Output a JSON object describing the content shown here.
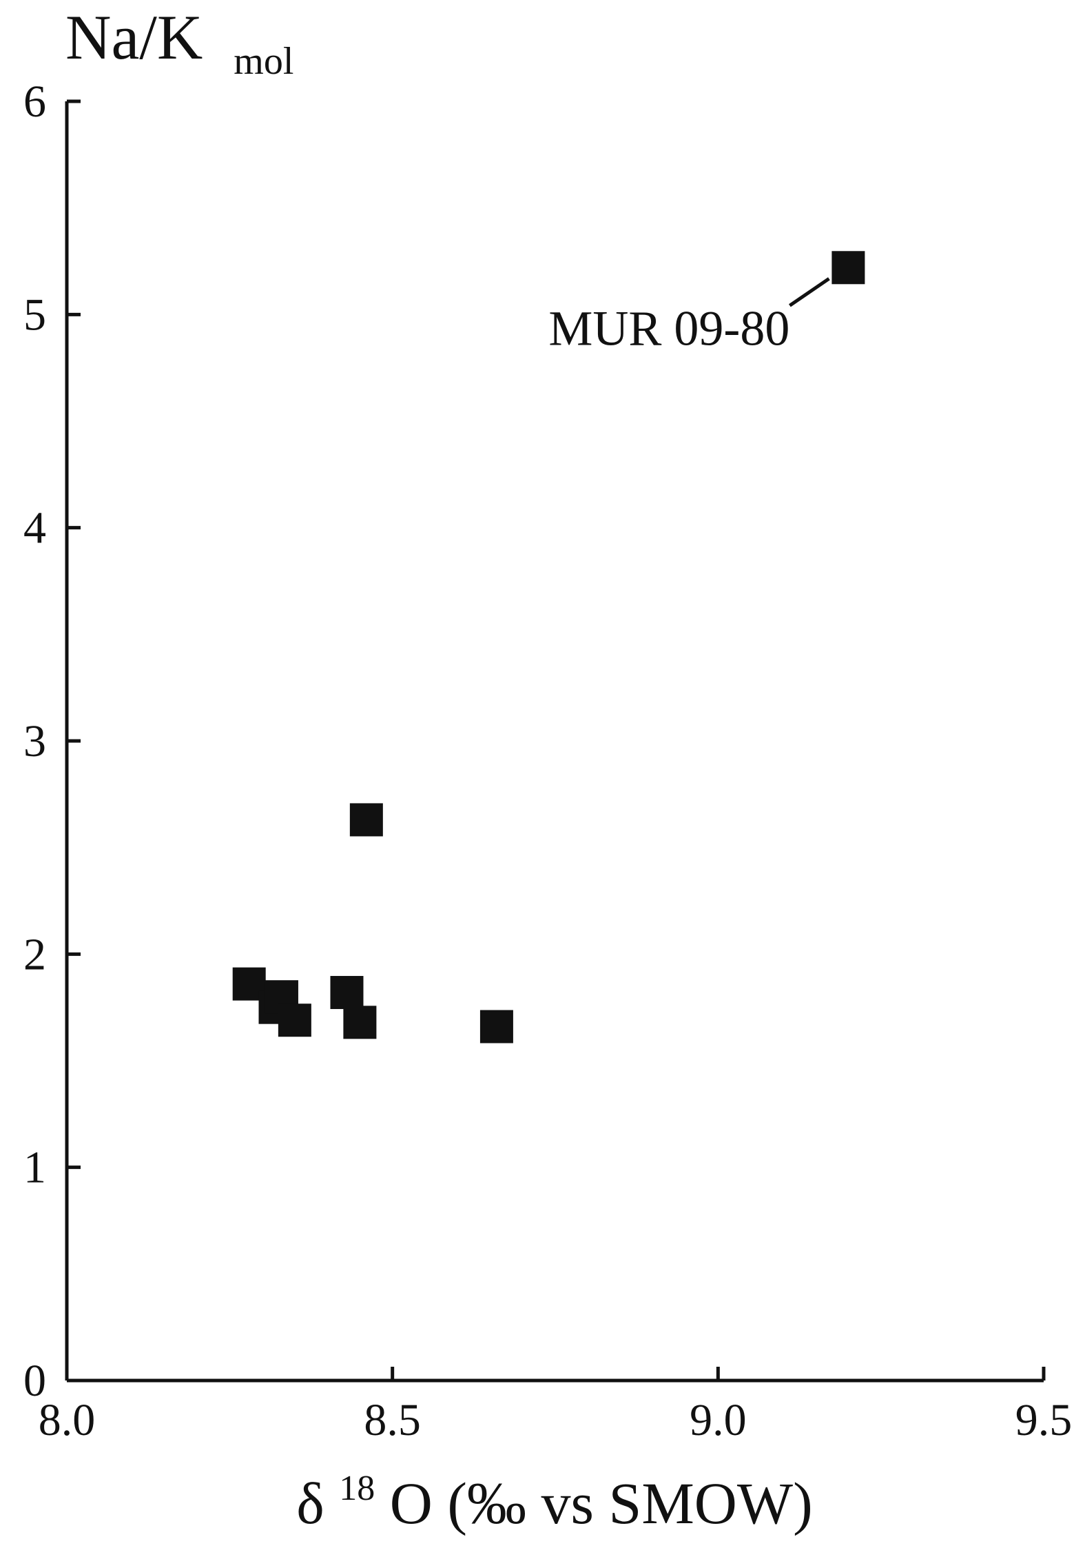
{
  "chart_data": {
    "type": "scatter",
    "ylabel_main": "Na/K",
    "ylabel_sub": "mol",
    "xlabel_delta": "δ",
    "xlabel_sup": "18",
    "xlabel_rest": "O (‰ vs SMOW)",
    "xlim": [
      8.0,
      9.5
    ],
    "ylim": [
      0,
      6
    ],
    "x_ticks": [
      8.0,
      8.5,
      9.0,
      9.5
    ],
    "x_tick_labels": [
      "8.0",
      "8.5",
      "9.0",
      "9.5"
    ],
    "y_ticks": [
      0,
      1,
      2,
      3,
      4,
      5,
      6
    ],
    "y_tick_labels": [
      "0",
      "1",
      "2",
      "3",
      "4",
      "5",
      "6"
    ],
    "grid": false,
    "legend": "none",
    "marker": "square",
    "marker_color": "#111111",
    "points": [
      {
        "x": 8.28,
        "y": 1.86
      },
      {
        "x": 8.32,
        "y": 1.75
      },
      {
        "x": 8.33,
        "y": 1.8
      },
      {
        "x": 8.35,
        "y": 1.69
      },
      {
        "x": 8.43,
        "y": 1.82
      },
      {
        "x": 8.45,
        "y": 1.68
      },
      {
        "x": 8.46,
        "y": 2.63
      },
      {
        "x": 8.66,
        "y": 1.66
      },
      {
        "x": 9.2,
        "y": 5.22,
        "label": "MUR 09-80"
      }
    ],
    "annotation": "MUR 09-80"
  }
}
